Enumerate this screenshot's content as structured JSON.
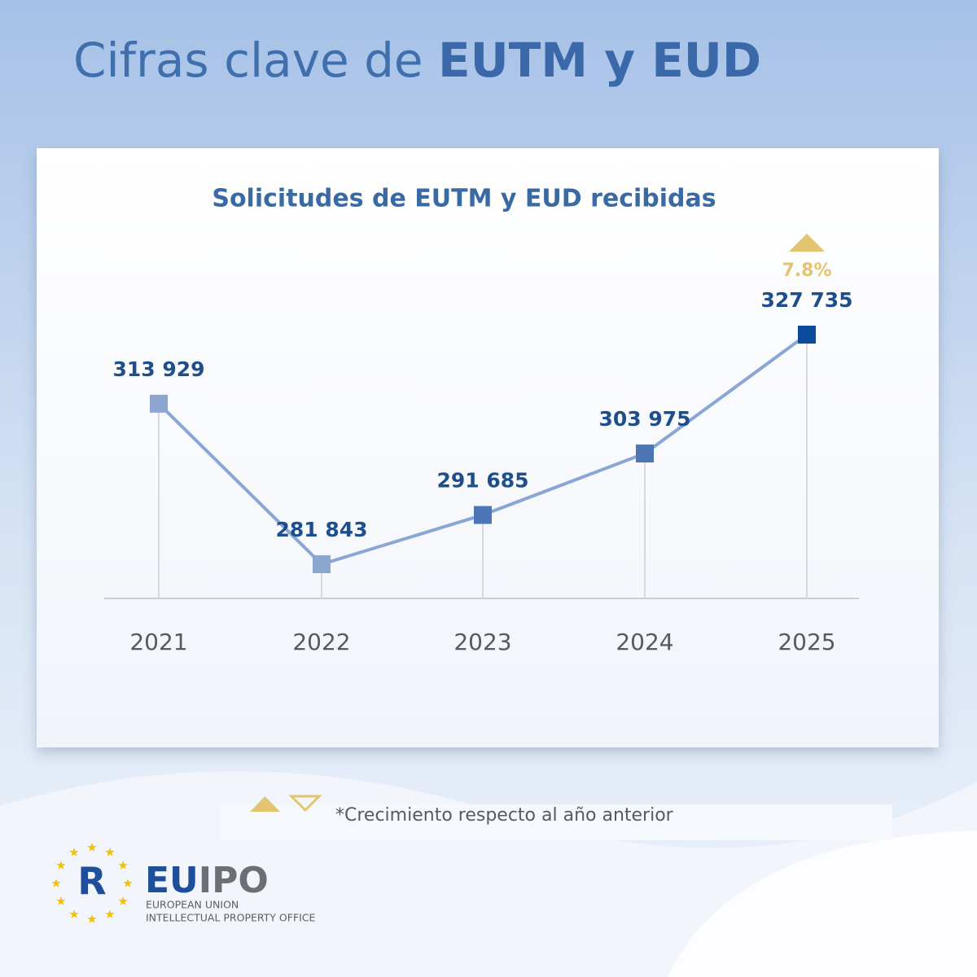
{
  "header": {
    "title_prefix": "Cifras clave de",
    "title_bold": "EUTM y EUD"
  },
  "chart_data": {
    "type": "line",
    "title": "Solicitudes de EUTM y EUD recibidas",
    "categories": [
      "2021",
      "2022",
      "2023",
      "2024",
      "2025"
    ],
    "series": [
      {
        "color": "#8aa6d4",
        "values": [
          313929,
          281843,
          291685,
          303975,
          327735
        ],
        "value_labels": [
          "313 929",
          "281 843",
          "291 685",
          "303 975",
          "327 735"
        ],
        "point_colors": [
          "#8ca6d0",
          "#8ca6d0",
          "#4d76b6",
          "#4d76b6",
          "#0d4a9c"
        ],
        "growth": [
          null,
          null,
          null,
          null,
          7.8
        ],
        "growth_labels": [
          null,
          null,
          null,
          null,
          "7.8%"
        ],
        "growth_color": "#e3c46f"
      }
    ]
  },
  "footnote": "*Crecimiento respecto al año anterior",
  "logo": {
    "mark": "R",
    "name_part1": "EU",
    "name_part2": "IPO",
    "line1": "EUROPEAN UNION",
    "line2": "INTELLECTUAL PROPERTY OFFICE"
  }
}
